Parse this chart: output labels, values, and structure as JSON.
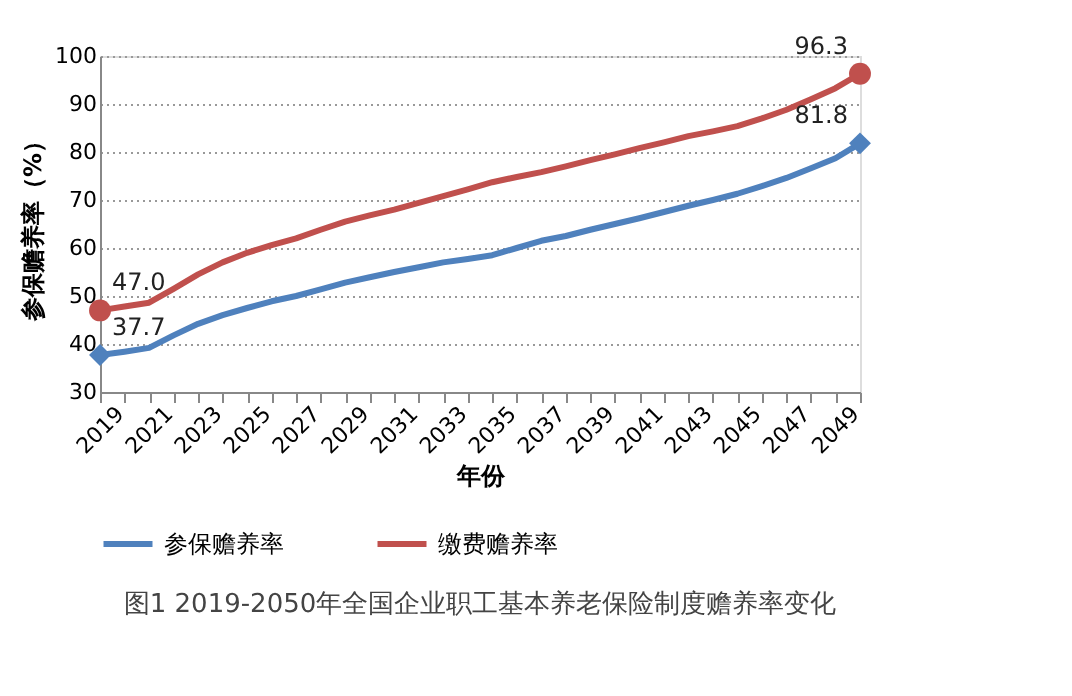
{
  "chart_data": {
    "type": "line",
    "title": "图1  2019-2050年全国企业职工基本养老保险制度赡养率变化",
    "xlabel": "年份",
    "ylabel": "参保赡养率（%）",
    "categories": [
      "2019",
      null,
      "2021",
      null,
      "2023",
      null,
      "2025",
      null,
      "2027",
      null,
      "2029",
      null,
      "2031",
      null,
      "2033",
      null,
      "2035",
      null,
      "2037",
      null,
      "2039",
      null,
      "2041",
      null,
      "2043",
      null,
      "2045",
      null,
      "2047",
      null,
      "2049",
      null
    ],
    "series": [
      {
        "name": "参保赡养率",
        "color": "#4f81bd",
        "values": [
          37.7,
          38.4,
          39.2,
          41.8,
          44.2,
          46.0,
          47.5,
          48.9,
          50.0,
          51.4,
          52.8,
          53.9,
          55.0,
          56.0,
          57.0,
          57.7,
          58.5,
          60.0,
          61.5,
          62.5,
          63.8,
          65.0,
          66.2,
          67.5,
          68.8,
          70.0,
          71.3,
          72.9,
          74.6,
          76.6,
          78.7,
          81.8
        ],
        "value_labels": [
          "37.7",
          null,
          null,
          null,
          null,
          null,
          null,
          null,
          null,
          null,
          null,
          null,
          null,
          null,
          null,
          null,
          null,
          null,
          null,
          null,
          null,
          null,
          null,
          null,
          null,
          null,
          null,
          null,
          null,
          null,
          null,
          "81.8"
        ]
      },
      {
        "name": "缴费赡养率",
        "color": "#c0504d",
        "values": [
          47.0,
          47.8,
          48.6,
          51.5,
          54.5,
          57.0,
          59.0,
          60.6,
          62.0,
          63.8,
          65.5,
          66.8,
          68.0,
          69.4,
          70.8,
          72.2,
          73.7,
          74.8,
          75.8,
          77.0,
          78.3,
          79.5,
          80.8,
          82.0,
          83.3,
          84.3,
          85.4,
          87.0,
          88.8,
          91.0,
          93.3,
          96.3
        ],
        "value_labels": [
          "47.0",
          null,
          null,
          null,
          null,
          null,
          null,
          null,
          null,
          null,
          null,
          null,
          null,
          null,
          null,
          null,
          null,
          null,
          null,
          null,
          null,
          null,
          null,
          null,
          null,
          null,
          null,
          null,
          null,
          null,
          null,
          "96.3"
        ]
      }
    ],
    "ylim": [
      30,
      100
    ],
    "yticks": [
      30,
      40,
      50,
      60,
      70,
      80,
      90,
      100
    ],
    "grid": "y",
    "legend": "bottom",
    "line_style": "solid"
  }
}
